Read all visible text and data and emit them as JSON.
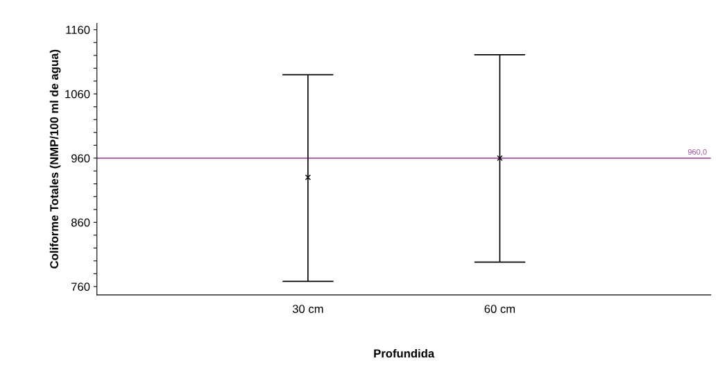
{
  "chart_data": {
    "type": "scatter",
    "xlabel": "Profundida",
    "ylabel": "Coliforme Totales (NMP/100 ml de agua)",
    "categories": [
      "30 cm",
      "60 cm"
    ],
    "series": [
      {
        "color": "#000000",
        "values": [
          930,
          960
        ],
        "errors": [
          [
            768,
            1090
          ],
          [
            798,
            1121
          ]
        ]
      }
    ],
    "marker": "cross",
    "ylim": [
      747,
      1170
    ],
    "yticks": [
      760,
      {
        "value": 780,
        "label": null
      },
      {
        "value": 800,
        "label": null
      },
      {
        "value": 820,
        "label": null
      },
      {
        "value": 840,
        "label": null
      },
      860,
      {
        "value": 880,
        "label": null
      },
      {
        "value": 900,
        "label": null
      },
      {
        "value": 920,
        "label": null
      },
      {
        "value": 940,
        "label": null
      },
      960,
      {
        "value": 980,
        "label": null
      },
      {
        "value": 1000,
        "label": null
      },
      {
        "value": 1020,
        "label": null
      },
      {
        "value": 1040,
        "label": null
      },
      1060,
      {
        "value": 1080,
        "label": null
      },
      {
        "value": 1100,
        "label": null
      },
      {
        "value": 1120,
        "label": null
      },
      {
        "value": 1140,
        "label": null
      },
      1160
    ],
    "ref_lines": [
      {
        "axis": "y",
        "value": 960,
        "label": "960,0",
        "color": "#a050a0"
      }
    ],
    "grid": false
  }
}
